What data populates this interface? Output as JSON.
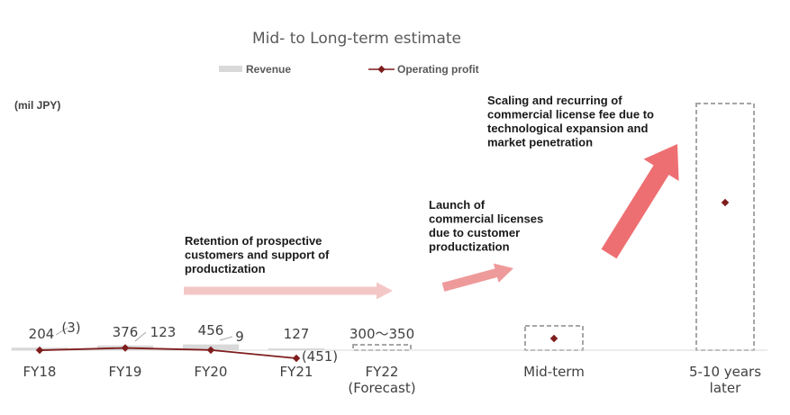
{
  "chart_data": {
    "type": "bar",
    "title": "Mid- to Long-term estimate",
    "unit_label": "(mil JPY)",
    "categories": [
      [
        "FY18"
      ],
      [
        "FY19"
      ],
      [
        "FY20"
      ],
      [
        "FY21"
      ],
      [
        "FY22",
        "(Forecast)"
      ],
      [
        "Mid-term"
      ],
      [
        "5-10 years",
        "later"
      ]
    ],
    "series": [
      {
        "name": "Revenue",
        "type": "bar",
        "color": "#d9d9d9",
        "values": [
          204,
          376,
          456,
          127,
          null,
          null,
          null
        ],
        "labels": [
          "204",
          "376",
          "456",
          "127",
          "300～350",
          "",
          ""
        ]
      },
      {
        "name": "Operating profit",
        "type": "line",
        "color": "#7f1d1d",
        "values": [
          -3,
          123,
          9,
          -451,
          null,
          null,
          null
        ],
        "labels": [
          "(3)",
          "123",
          "9",
          "(451)",
          "",
          "",
          ""
        ]
      }
    ],
    "estimate_boxes": [
      "FY22 (Forecast)",
      "Mid-term",
      "5-10 years later"
    ],
    "annotations": [
      [
        "Retention of prospective",
        "customers and support of",
        "productization"
      ],
      [
        "Launch of",
        "commercial licenses",
        "due to customer",
        "productization"
      ],
      [
        "Scaling and recurring of",
        "commercial license fee due to",
        "technological expansion and",
        "market penetration"
      ]
    ],
    "legend": {
      "position": "top"
    },
    "grid": false
  },
  "colors": {
    "revenue": "#d9d9d9",
    "profit": "#7f1d1d",
    "dashed_box": "#a6a6a6",
    "arrow_light": "#f4c7c7",
    "arrow_mid": "#ef9a9a",
    "arrow_strong": "#ee6f72"
  }
}
